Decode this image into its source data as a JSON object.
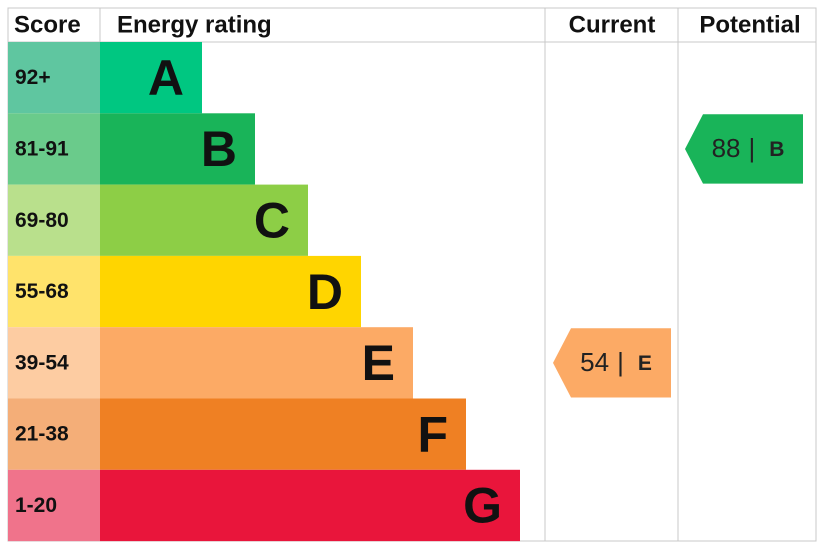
{
  "header": {
    "score": "Score",
    "rating": "Energy rating",
    "current": "Current",
    "potential": "Potential"
  },
  "bands": [
    {
      "score": "92+",
      "letter": "A",
      "color": "#00c781",
      "score_color": "#5fc6a0"
    },
    {
      "score": "81-91",
      "letter": "B",
      "color": "#19b459",
      "score_color": "#6acb8b"
    },
    {
      "score": "69-80",
      "letter": "C",
      "color": "#8dce46",
      "score_color": "#b9e08c"
    },
    {
      "score": "55-68",
      "letter": "D",
      "color": "#ffd500",
      "score_color": "#ffe36b"
    },
    {
      "score": "39-54",
      "letter": "E",
      "color": "#fcaa65",
      "score_color": "#fdcca2"
    },
    {
      "score": "21-38",
      "letter": "F",
      "color": "#ef8023",
      "score_color": "#f4ae78"
    },
    {
      "score": "1-20",
      "letter": "G",
      "color": "#e9153b",
      "score_color": "#f0738b"
    }
  ],
  "current": {
    "value": 54,
    "separator": "|",
    "band": "E"
  },
  "potential": {
    "value": 88,
    "separator": "|",
    "band": "B"
  }
}
